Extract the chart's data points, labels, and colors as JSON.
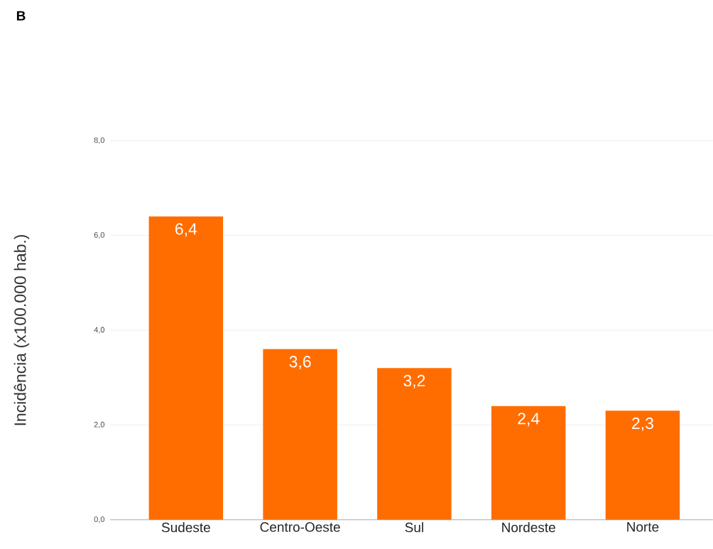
{
  "chart_data": {
    "type": "bar",
    "title": "B",
    "ylabel": "Incidência (x100.000 hab.)",
    "categories": [
      "Sudeste",
      "Centro-Oeste",
      "Sul",
      "Nordeste",
      "Norte"
    ],
    "values": [
      6.4,
      3.6,
      3.2,
      2.4,
      2.3
    ],
    "value_labels": [
      "6,4",
      "3,6",
      "3,2",
      "2,4",
      "2,3"
    ],
    "color": "#ff6d01",
    "ylim": [
      0,
      8
    ],
    "yticks": [
      {
        "value": 0,
        "label": "0,0"
      },
      {
        "value": 2,
        "label": "2,0"
      },
      {
        "value": 4,
        "label": "4,0"
      },
      {
        "value": 6,
        "label": "6,0"
      },
      {
        "value": 8,
        "label": "8,0"
      }
    ],
    "grid": "y"
  }
}
